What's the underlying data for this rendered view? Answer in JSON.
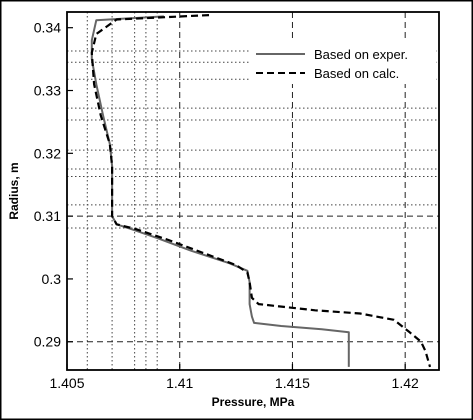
{
  "chart_data": {
    "type": "line",
    "xlabel": "Pressure, MPa",
    "ylabel": "Radius, m",
    "xlim": [
      1.405,
      1.4215
    ],
    "ylim": [
      0.2855,
      0.3425
    ],
    "xticks": [
      {
        "value": 1.405,
        "label": "1.405"
      },
      {
        "value": 1.41,
        "label": "1.41"
      },
      {
        "value": 1.415,
        "label": "1.415"
      },
      {
        "value": 1.42,
        "label": "1.42"
      }
    ],
    "yticks": [
      {
        "value": 0.29,
        "label": "0.29"
      },
      {
        "value": 0.3,
        "label": "0.3"
      },
      {
        "value": 0.31,
        "label": "0.31"
      },
      {
        "value": 0.32,
        "label": "0.32"
      },
      {
        "value": 0.33,
        "label": "0.33"
      },
      {
        "value": 0.34,
        "label": "0.34"
      }
    ],
    "dashed_grid_x": [
      1.41,
      1.415,
      1.42
    ],
    "dashed_grid_y": [
      0.29,
      0.31
    ],
    "dotted_grid_x": [
      1.4059,
      1.407,
      1.408,
      1.4085,
      1.409
    ],
    "dotted_grid_y": [
      0.3081,
      0.3118,
      0.3163,
      0.3175,
      0.3205,
      0.3253,
      0.3272,
      0.3318,
      0.3345,
      0.3363
    ],
    "legend_position": "top-right",
    "series": [
      {
        "name": "Based on exper.",
        "style": "solid",
        "color": "#666666",
        "x": [
          1.4093,
          1.4063,
          1.4061,
          1.4061,
          1.4063,
          1.4066,
          1.4069,
          1.407,
          1.407,
          1.407,
          1.4072,
          1.4078,
          1.409,
          1.4105,
          1.4122,
          1.413,
          1.4131,
          1.4131,
          1.4132,
          1.4133,
          1.4145,
          1.4163,
          1.4175,
          1.4175,
          1.4175
        ],
        "y": [
          0.3418,
          0.3412,
          0.338,
          0.335,
          0.331,
          0.326,
          0.3215,
          0.318,
          0.3145,
          0.31,
          0.3087,
          0.308,
          0.3065,
          0.3045,
          0.3025,
          0.3013,
          0.2995,
          0.296,
          0.294,
          0.293,
          0.2925,
          0.292,
          0.2915,
          0.289,
          0.286
        ]
      },
      {
        "name": "Based on calc.",
        "style": "dashed",
        "color": "#000000",
        "x": [
          1.4113,
          1.4072,
          1.4063,
          1.4061,
          1.4062,
          1.4065,
          1.4069,
          1.407,
          1.407,
          1.407,
          1.4072,
          1.408,
          1.4095,
          1.411,
          1.4125,
          1.413,
          1.4131,
          1.4132,
          1.4135,
          1.416,
          1.418,
          1.4195,
          1.4202,
          1.4207,
          1.4209,
          1.4211
        ],
        "y": [
          0.342,
          0.3413,
          0.339,
          0.336,
          0.331,
          0.326,
          0.3215,
          0.318,
          0.3145,
          0.31,
          0.3087,
          0.308,
          0.3062,
          0.3042,
          0.3022,
          0.301,
          0.2995,
          0.297,
          0.296,
          0.295,
          0.2945,
          0.2935,
          0.2915,
          0.29,
          0.2885,
          0.286
        ]
      }
    ]
  }
}
